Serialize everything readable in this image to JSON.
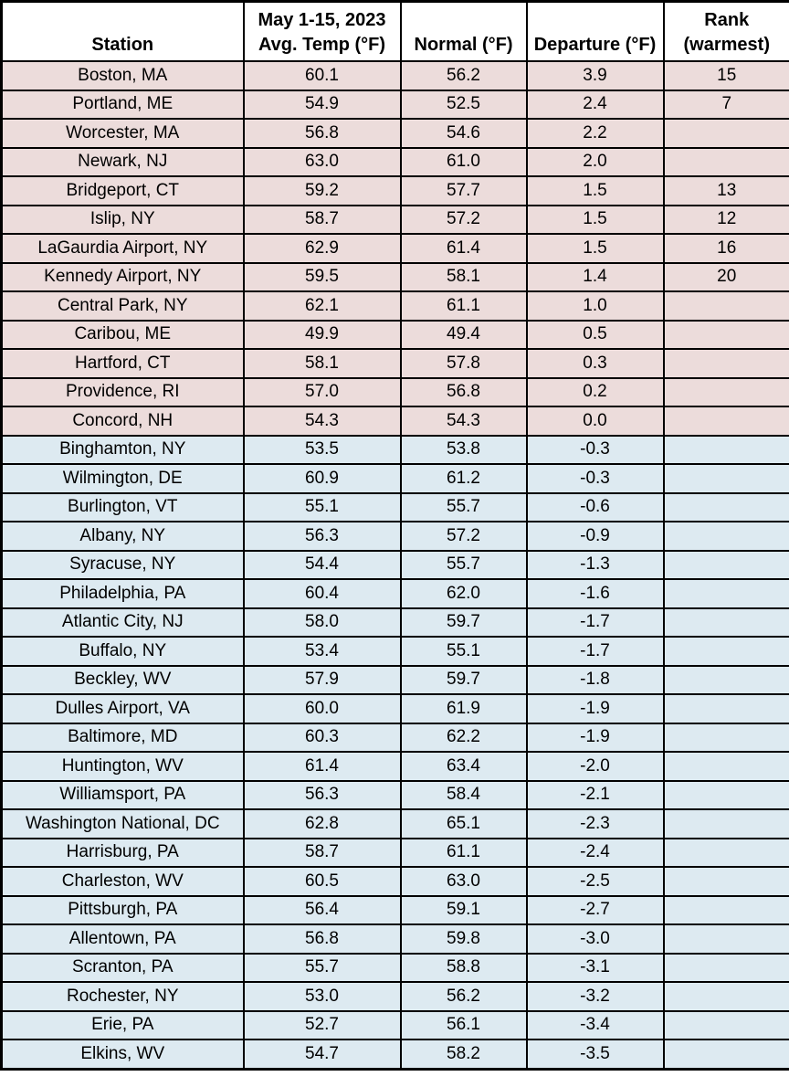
{
  "colors": {
    "warm_row_bg": "#ecdcdb",
    "cool_row_bg": "#ddeaf1",
    "border": "#000000",
    "header_bg": "#ffffff",
    "text": "#000000"
  },
  "header": {
    "station": "Station",
    "avg_temp_line1": "May 1-15, 2023",
    "avg_temp_line2": "Avg. Temp (°F)",
    "normal": "Normal (°F)",
    "departure": "Departure (°F)",
    "rank_line1": "Rank",
    "rank_line2": "(warmest)"
  },
  "chart_data": {
    "type": "table",
    "columns": [
      "Station",
      "May 1-15, 2023 Avg. Temp (°F)",
      "Normal (°F)",
      "Departure (°F)",
      "Rank (warmest)"
    ],
    "row_color_legend": {
      "warm": "departure >= 0 (pink rows)",
      "cool": "departure < 0 (light blue rows)"
    },
    "rows": [
      {
        "station": "Boston, MA",
        "avg_temp": "60.1",
        "normal": "56.2",
        "departure": "3.9",
        "rank": "15",
        "highlight": "warm"
      },
      {
        "station": "Portland, ME",
        "avg_temp": "54.9",
        "normal": "52.5",
        "departure": "2.4",
        "rank": "7",
        "highlight": "warm"
      },
      {
        "station": "Worcester, MA",
        "avg_temp": "56.8",
        "normal": "54.6",
        "departure": "2.2",
        "rank": "",
        "highlight": "warm"
      },
      {
        "station": "Newark, NJ",
        "avg_temp": "63.0",
        "normal": "61.0",
        "departure": "2.0",
        "rank": "",
        "highlight": "warm"
      },
      {
        "station": "Bridgeport, CT",
        "avg_temp": "59.2",
        "normal": "57.7",
        "departure": "1.5",
        "rank": "13",
        "highlight": "warm"
      },
      {
        "station": "Islip, NY",
        "avg_temp": "58.7",
        "normal": "57.2",
        "departure": "1.5",
        "rank": "12",
        "highlight": "warm"
      },
      {
        "station": "LaGaurdia Airport, NY",
        "avg_temp": "62.9",
        "normal": "61.4",
        "departure": "1.5",
        "rank": "16",
        "highlight": "warm"
      },
      {
        "station": "Kennedy Airport, NY",
        "avg_temp": "59.5",
        "normal": "58.1",
        "departure": "1.4",
        "rank": "20",
        "highlight": "warm"
      },
      {
        "station": "Central Park, NY",
        "avg_temp": "62.1",
        "normal": "61.1",
        "departure": "1.0",
        "rank": "",
        "highlight": "warm"
      },
      {
        "station": "Caribou, ME",
        "avg_temp": "49.9",
        "normal": "49.4",
        "departure": "0.5",
        "rank": "",
        "highlight": "warm"
      },
      {
        "station": "Hartford, CT",
        "avg_temp": "58.1",
        "normal": "57.8",
        "departure": "0.3",
        "rank": "",
        "highlight": "warm"
      },
      {
        "station": "Providence, RI",
        "avg_temp": "57.0",
        "normal": "56.8",
        "departure": "0.2",
        "rank": "",
        "highlight": "warm"
      },
      {
        "station": "Concord, NH",
        "avg_temp": "54.3",
        "normal": "54.3",
        "departure": "0.0",
        "rank": "",
        "highlight": "warm"
      },
      {
        "station": "Binghamton, NY",
        "avg_temp": "53.5",
        "normal": "53.8",
        "departure": "-0.3",
        "rank": "",
        "highlight": "cool"
      },
      {
        "station": "Wilmington, DE",
        "avg_temp": "60.9",
        "normal": "61.2",
        "departure": "-0.3",
        "rank": "",
        "highlight": "cool"
      },
      {
        "station": "Burlington, VT",
        "avg_temp": "55.1",
        "normal": "55.7",
        "departure": "-0.6",
        "rank": "",
        "highlight": "cool"
      },
      {
        "station": "Albany, NY",
        "avg_temp": "56.3",
        "normal": "57.2",
        "departure": "-0.9",
        "rank": "",
        "highlight": "cool"
      },
      {
        "station": "Syracuse, NY",
        "avg_temp": "54.4",
        "normal": "55.7",
        "departure": "-1.3",
        "rank": "",
        "highlight": "cool"
      },
      {
        "station": "Philadelphia, PA",
        "avg_temp": "60.4",
        "normal": "62.0",
        "departure": "-1.6",
        "rank": "",
        "highlight": "cool"
      },
      {
        "station": "Atlantic City, NJ",
        "avg_temp": "58.0",
        "normal": "59.7",
        "departure": "-1.7",
        "rank": "",
        "highlight": "cool"
      },
      {
        "station": "Buffalo, NY",
        "avg_temp": "53.4",
        "normal": "55.1",
        "departure": "-1.7",
        "rank": "",
        "highlight": "cool"
      },
      {
        "station": "Beckley, WV",
        "avg_temp": "57.9",
        "normal": "59.7",
        "departure": "-1.8",
        "rank": "",
        "highlight": "cool"
      },
      {
        "station": "Dulles Airport, VA",
        "avg_temp": "60.0",
        "normal": "61.9",
        "departure": "-1.9",
        "rank": "",
        "highlight": "cool"
      },
      {
        "station": "Baltimore, MD",
        "avg_temp": "60.3",
        "normal": "62.2",
        "departure": "-1.9",
        "rank": "",
        "highlight": "cool"
      },
      {
        "station": "Huntington, WV",
        "avg_temp": "61.4",
        "normal": "63.4",
        "departure": "-2.0",
        "rank": "",
        "highlight": "cool"
      },
      {
        "station": "Williamsport, PA",
        "avg_temp": "56.3",
        "normal": "58.4",
        "departure": "-2.1",
        "rank": "",
        "highlight": "cool"
      },
      {
        "station": "Washington National, DC",
        "avg_temp": "62.8",
        "normal": "65.1",
        "departure": "-2.3",
        "rank": "",
        "highlight": "cool"
      },
      {
        "station": "Harrisburg, PA",
        "avg_temp": "58.7",
        "normal": "61.1",
        "departure": "-2.4",
        "rank": "",
        "highlight": "cool"
      },
      {
        "station": "Charleston, WV",
        "avg_temp": "60.5",
        "normal": "63.0",
        "departure": "-2.5",
        "rank": "",
        "highlight": "cool"
      },
      {
        "station": "Pittsburgh, PA",
        "avg_temp": "56.4",
        "normal": "59.1",
        "departure": "-2.7",
        "rank": "",
        "highlight": "cool"
      },
      {
        "station": "Allentown, PA",
        "avg_temp": "56.8",
        "normal": "59.8",
        "departure": "-3.0",
        "rank": "",
        "highlight": "cool"
      },
      {
        "station": "Scranton, PA",
        "avg_temp": "55.7",
        "normal": "58.8",
        "departure": "-3.1",
        "rank": "",
        "highlight": "cool"
      },
      {
        "station": "Rochester, NY",
        "avg_temp": "53.0",
        "normal": "56.2",
        "departure": "-3.2",
        "rank": "",
        "highlight": "cool"
      },
      {
        "station": "Erie, PA",
        "avg_temp": "52.7",
        "normal": "56.1",
        "departure": "-3.4",
        "rank": "",
        "highlight": "cool"
      },
      {
        "station": "Elkins, WV",
        "avg_temp": "54.7",
        "normal": "58.2",
        "departure": "-3.5",
        "rank": "",
        "highlight": "cool"
      }
    ]
  }
}
